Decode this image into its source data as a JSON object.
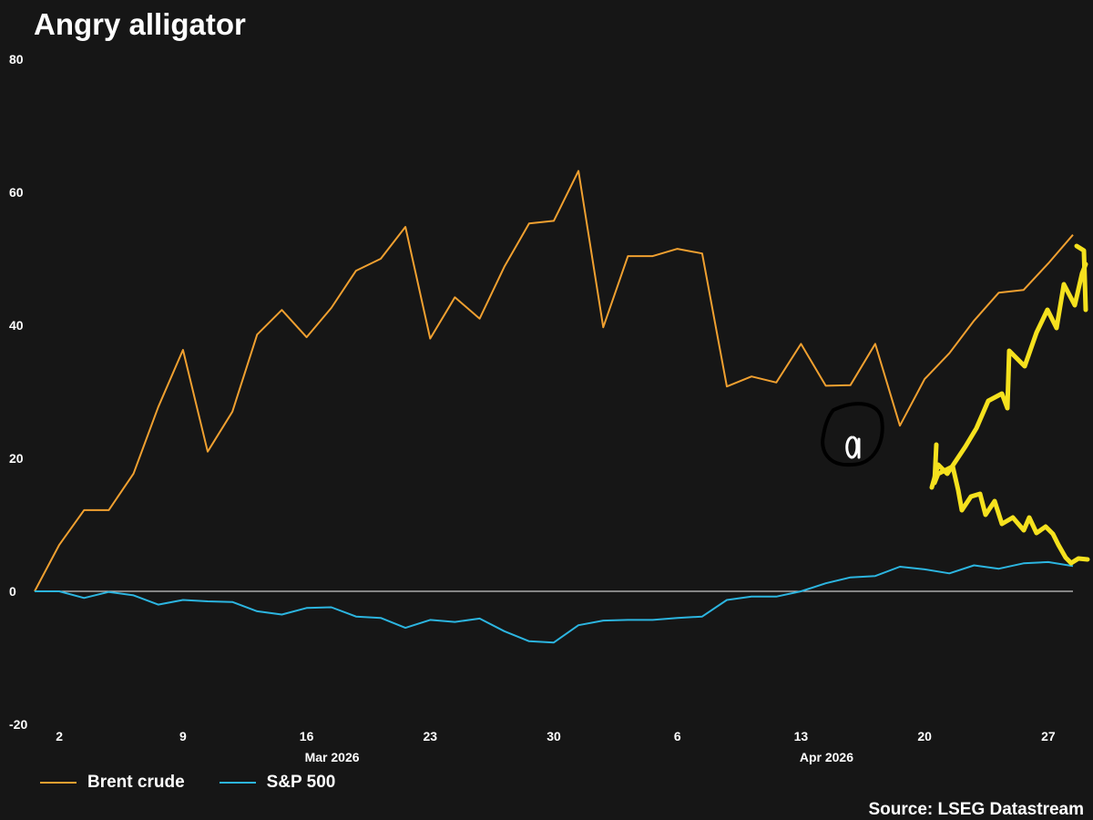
{
  "title": "Angry alligator",
  "source": "Source: LSEG Datastream",
  "colors": {
    "background": "#161616",
    "brent": "#f0a030",
    "sp500": "#2cb5e0",
    "zero_line": "#c8c8c8",
    "annotation_arrows": "#f5e11e",
    "annotation_circle": "#000000"
  },
  "chart_data": {
    "type": "line",
    "title": "Angry alligator",
    "xlabel": "",
    "ylabel": "",
    "ylim": [
      -20,
      80
    ],
    "yticks": [
      "80",
      "60",
      "40",
      "20",
      "0",
      "-20"
    ],
    "xticks": [
      "2",
      "9",
      "16",
      "23",
      "30",
      "6",
      "13",
      "20",
      "27"
    ],
    "month_labels": [
      "Mar 2026",
      "Apr 2026"
    ],
    "grid": false,
    "legend_position": "bottom-left",
    "series": [
      {
        "name": "Brent crude",
        "color": "#f0a030",
        "values": [
          0,
          7,
          12.2,
          12.2,
          17.7,
          27.7,
          36.3,
          21,
          27,
          38.6,
          42.3,
          38.2,
          42.6,
          48.2,
          50,
          54.8,
          38,
          44.2,
          41,
          48.8,
          55.3,
          55.7,
          63.2,
          39.7,
          50.4,
          50.4,
          51.5,
          50.8,
          30.8,
          32.3,
          31.4,
          37.2,
          30.9,
          31,
          37.2,
          24.9,
          31.9,
          35.8,
          40.7,
          44.9,
          45.3,
          49.3,
          53.6
        ]
      },
      {
        "name": "S&P 500",
        "color": "#2cb5e0",
        "values": [
          0,
          0,
          -1,
          -0.1,
          -0.6,
          -2,
          -1.3,
          -1.5,
          -1.6,
          -3,
          -3.5,
          -2.5,
          -2.4,
          -3.8,
          -4,
          -5.5,
          -4.3,
          -4.6,
          -4.1,
          -6,
          -7.5,
          -7.7,
          -5.1,
          -4.4,
          -4.3,
          -4.3,
          -4,
          -3.8,
          -1.3,
          -0.8,
          -0.8,
          0,
          1.2,
          2.1,
          2.3,
          3.7,
          3.3,
          2.7,
          3.9,
          3.4,
          4.2,
          4.4,
          3.8
        ]
      }
    ]
  }
}
